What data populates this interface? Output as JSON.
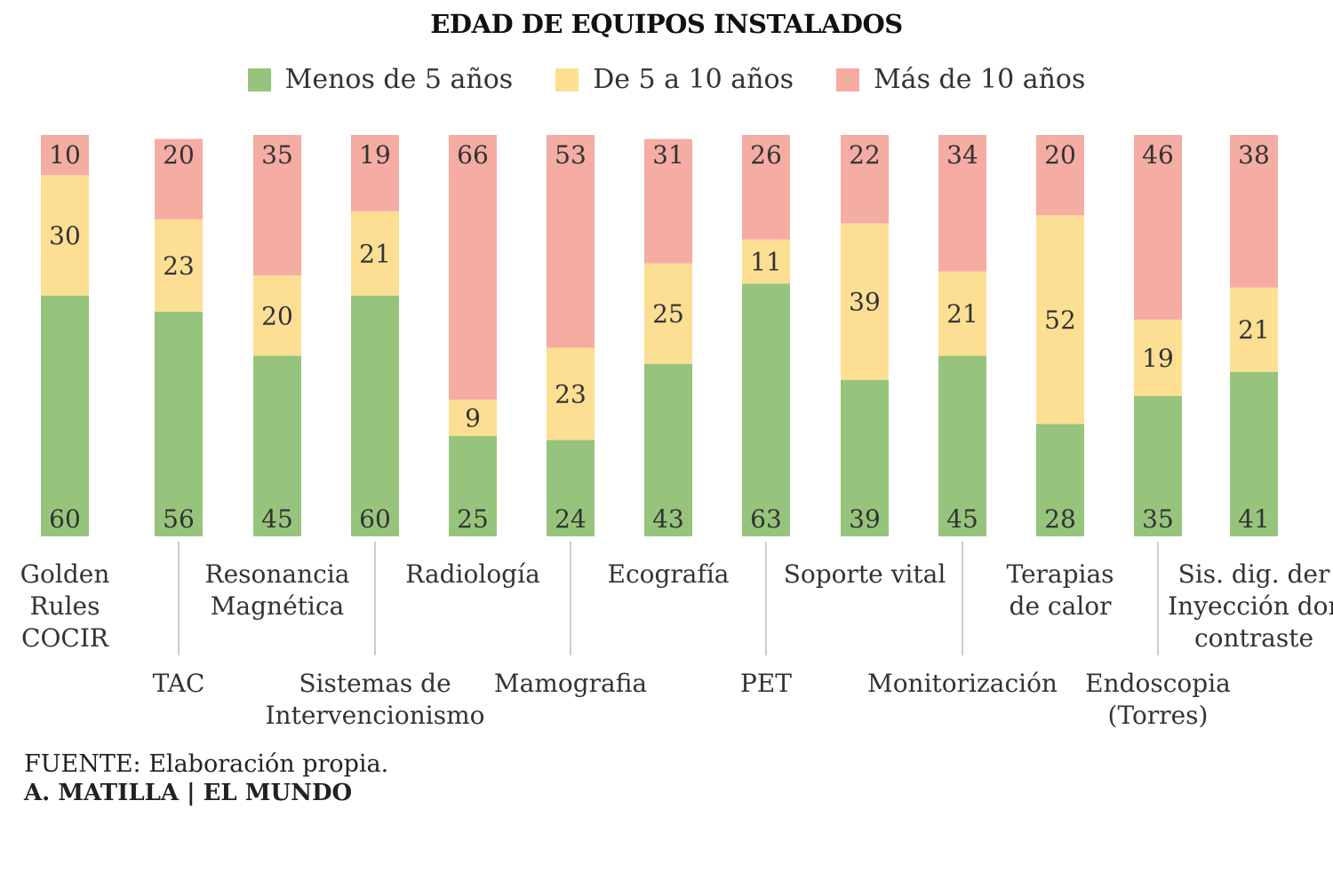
{
  "chart_data": {
    "type": "bar",
    "stacked": true,
    "title": "EDAD DE EQUIPOS INSTALADOS",
    "categories": [
      "Golden Rules COCIR",
      "TAC",
      "Resonancia Magnética",
      "Sistemas de Intervencionismo",
      "Radiología",
      "Mamografia",
      "Ecografía",
      "PET",
      "Soporte vital",
      "Monitorización",
      "Terapias de calor",
      "Endoscopia (Torres)",
      "Sis. dig. der Inyección dor contraste"
    ],
    "series": [
      {
        "name": "Menos de 5 años",
        "color": "#97c47c",
        "values": [
          60,
          56,
          45,
          60,
          25,
          24,
          43,
          63,
          39,
          45,
          28,
          35,
          41
        ]
      },
      {
        "name": "De 5 a 10 años",
        "color": "#fddf94",
        "values": [
          30,
          23,
          20,
          21,
          9,
          23,
          25,
          11,
          39,
          21,
          52,
          19,
          21
        ]
      },
      {
        "name": "Más de 10 años",
        "color": "#f4aca3",
        "values": [
          10,
          20,
          35,
          19,
          66,
          53,
          31,
          26,
          22,
          34,
          20,
          46,
          38
        ]
      }
    ],
    "ylim": [
      0,
      100
    ],
    "grid": false,
    "legend_position": "top"
  },
  "label_lines": [
    [
      "Golden",
      "Rules",
      "COCIR"
    ],
    [
      "TAC"
    ],
    [
      "Resonancia",
      "Magnética"
    ],
    [
      "Sistemas de",
      "Intervencionismo"
    ],
    [
      "Radiología"
    ],
    [
      "Mamografia"
    ],
    [
      "Ecografía"
    ],
    [
      "PET"
    ],
    [
      "Soporte vital"
    ],
    [
      "Monitorización"
    ],
    [
      "Terapias",
      "de calor"
    ],
    [
      "Endoscopia",
      "(Torres)"
    ],
    [
      "Sis. dig. der",
      "Inyección dor",
      "contraste"
    ]
  ],
  "footer": {
    "source_label": "FUENTE:",
    "source_text": " Elaboración propia.",
    "credit": "A. MATILLA | EL MUNDO"
  }
}
